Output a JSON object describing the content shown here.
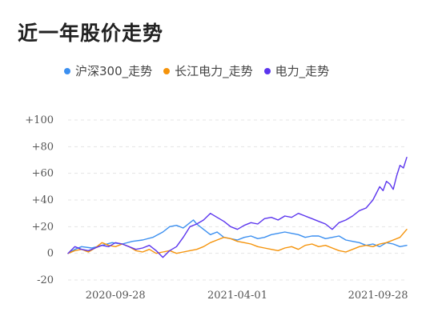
{
  "title": "近一年股价走势",
  "legend": [
    {
      "label": "沪深300_走势",
      "color": "#3b8ff0"
    },
    {
      "label": "长江电力_走势",
      "color": "#f5930a"
    },
    {
      "label": "电力_走势",
      "color": "#5b35ee"
    }
  ],
  "chart_data": {
    "type": "line",
    "ylim": [
      -20,
      100
    ],
    "y_ticks": [
      "+100",
      "+80",
      "+60",
      "+40",
      "+20",
      "0",
      "-20"
    ],
    "y_tick_values": [
      100,
      80,
      60,
      40,
      20,
      0,
      -20
    ],
    "x_ticks": [
      "2020-09-28",
      "2021-04-01",
      "2021-09-28"
    ],
    "x_tick_positions": [
      0.14,
      0.5,
      0.915
    ],
    "xlim": [
      0,
      1
    ],
    "grid": true,
    "legend_position": "top-left",
    "series": [
      {
        "name": "沪深300_走势",
        "color": "#3b8ff0",
        "x": [
          0,
          0.02,
          0.04,
          0.07,
          0.1,
          0.13,
          0.16,
          0.19,
          0.22,
          0.25,
          0.28,
          0.3,
          0.32,
          0.34,
          0.36,
          0.37,
          0.38,
          0.4,
          0.42,
          0.44,
          0.46,
          0.48,
          0.5,
          0.52,
          0.54,
          0.56,
          0.58,
          0.6,
          0.62,
          0.64,
          0.66,
          0.68,
          0.7,
          0.72,
          0.74,
          0.76,
          0.78,
          0.8,
          0.82,
          0.84,
          0.86,
          0.88,
          0.9,
          0.92,
          0.94,
          0.96,
          0.98,
          1
        ],
        "y": [
          0,
          3,
          5,
          4,
          6,
          8,
          7,
          9,
          10,
          12,
          16,
          20,
          21,
          19,
          23,
          25,
          22,
          18,
          14,
          16,
          12,
          11,
          10,
          12,
          13,
          11,
          12,
          14,
          15,
          16,
          15,
          14,
          12,
          13,
          13,
          11,
          12,
          13,
          10,
          9,
          8,
          6,
          7,
          5,
          8,
          7,
          5,
          6
        ]
      },
      {
        "name": "长江电力_走势",
        "color": "#f5930a",
        "x": [
          0,
          0.02,
          0.04,
          0.06,
          0.08,
          0.1,
          0.12,
          0.14,
          0.16,
          0.18,
          0.2,
          0.22,
          0.24,
          0.26,
          0.28,
          0.3,
          0.32,
          0.34,
          0.36,
          0.38,
          0.4,
          0.42,
          0.44,
          0.46,
          0.48,
          0.5,
          0.52,
          0.54,
          0.56,
          0.58,
          0.6,
          0.62,
          0.64,
          0.66,
          0.68,
          0.7,
          0.72,
          0.74,
          0.76,
          0.78,
          0.8,
          0.82,
          0.84,
          0.86,
          0.88,
          0.9,
          0.92,
          0.94,
          0.96,
          0.98,
          1
        ],
        "y": [
          0,
          2,
          3,
          1,
          4,
          8,
          6,
          5,
          7,
          5,
          2,
          1,
          3,
          0,
          1,
          2,
          0,
          1,
          2,
          3,
          5,
          8,
          10,
          12,
          11,
          9,
          8,
          7,
          5,
          4,
          3,
          2,
          4,
          5,
          3,
          6,
          7,
          5,
          6,
          4,
          2,
          1,
          3,
          5,
          6,
          5,
          7,
          8,
          10,
          12,
          18
        ]
      },
      {
        "name": "电力_走势",
        "color": "#5b35ee",
        "x": [
          0,
          0.02,
          0.04,
          0.06,
          0.08,
          0.1,
          0.12,
          0.14,
          0.16,
          0.18,
          0.2,
          0.22,
          0.24,
          0.26,
          0.28,
          0.3,
          0.32,
          0.34,
          0.36,
          0.38,
          0.4,
          0.42,
          0.44,
          0.46,
          0.48,
          0.5,
          0.52,
          0.54,
          0.56,
          0.58,
          0.6,
          0.62,
          0.64,
          0.66,
          0.68,
          0.7,
          0.72,
          0.74,
          0.76,
          0.78,
          0.8,
          0.82,
          0.84,
          0.86,
          0.88,
          0.9,
          0.92,
          0.93,
          0.94,
          0.95,
          0.96,
          0.97,
          0.98,
          0.99,
          1
        ],
        "y": [
          0,
          5,
          3,
          2,
          4,
          6,
          5,
          8,
          7,
          5,
          3,
          4,
          6,
          2,
          -3,
          2,
          5,
          12,
          20,
          22,
          25,
          30,
          27,
          24,
          20,
          18,
          21,
          23,
          22,
          26,
          27,
          25,
          28,
          27,
          30,
          28,
          26,
          24,
          22,
          18,
          23,
          25,
          28,
          32,
          34,
          40,
          50,
          47,
          54,
          52,
          48,
          58,
          66,
          64,
          72
        ]
      }
    ]
  }
}
